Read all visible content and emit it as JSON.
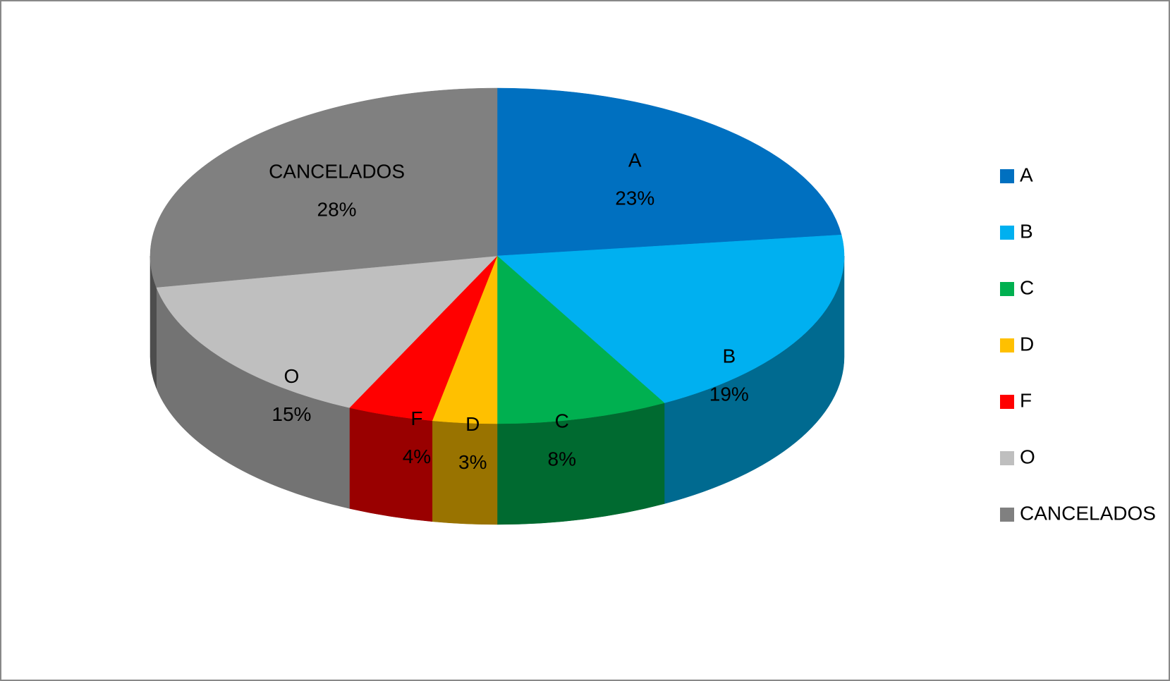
{
  "chart_data": {
    "type": "pie3d",
    "categories": [
      "A",
      "B",
      "C",
      "D",
      "F",
      "O",
      "CANCELADOS"
    ],
    "values": [
      23,
      19,
      8,
      3,
      4,
      15,
      28
    ],
    "value_labels": [
      "23%",
      "19%",
      "8%",
      "3%",
      "4%",
      "15%",
      "28%"
    ],
    "colors": [
      "#0070c0",
      "#00b0f0",
      "#00b050",
      "#ffc000",
      "#ff0000",
      "#bfbfbf",
      "#808080"
    ],
    "legend": "right"
  }
}
